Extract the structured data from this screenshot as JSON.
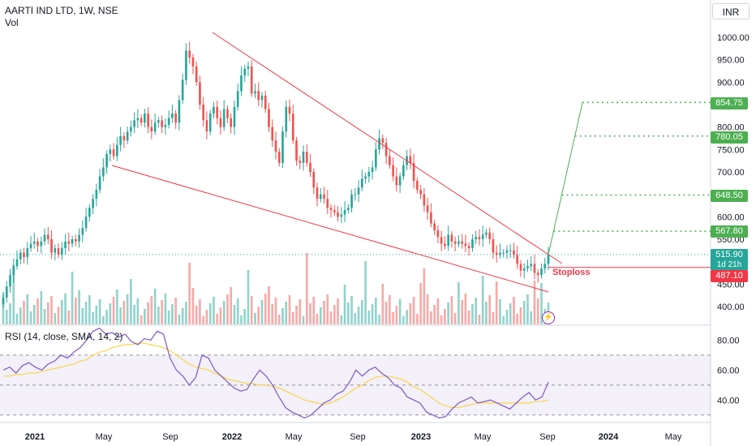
{
  "header": {
    "symbol": "AARTI IND LTD, 1W, NSE",
    "volume_label": "Vol",
    "currency": "INR",
    "rsi_label": "RSI (14, close, SMA, 14, 2)"
  },
  "price_tags": {
    "current": "515.90",
    "countdown": "1d 21h",
    "stoploss": "487.10",
    "t1": "567.80",
    "t2": "648.50",
    "t3": "780.05",
    "t4": "854.75"
  },
  "annotations": {
    "stoploss_text": "Stoploss",
    "bolt_icon": "lightning-icon"
  },
  "colors": {
    "up": "#26a69a",
    "down": "#ef5350",
    "trendline": "#f23645",
    "target": "#4caf50",
    "rsi": "#7e57c2",
    "rsi_ma": "#f7d54a"
  },
  "chart_data": [
    {
      "type": "candlestick",
      "title": "AARTI IND LTD, 1W, NSE",
      "x_ticks": [
        "2021",
        "May",
        "Sep",
        "2022",
        "May",
        "Sep",
        "2023",
        "May",
        "Sep",
        "2024",
        "May"
      ],
      "y_ticks": [
        "1000.00",
        "950.00",
        "900.00",
        "850.00",
        "800.00",
        "750.00",
        "700.00",
        "650.00",
        "600.00",
        "550.00",
        "500.00",
        "450.00",
        "400.00"
      ],
      "ylim": [
        385,
        1015
      ],
      "closes": [
        420,
        445,
        470,
        490,
        505,
        520,
        510,
        530,
        540,
        545,
        535,
        545,
        560,
        550,
        520,
        530,
        515,
        530,
        545,
        540,
        550,
        545,
        560,
        575,
        600,
        620,
        640,
        660,
        690,
        710,
        740,
        750,
        735,
        760,
        780,
        770,
        790,
        800,
        815,
        820,
        810,
        830,
        800,
        790,
        810,
        815,
        800,
        805,
        820,
        830,
        810,
        860,
        905,
        970,
        955,
        935,
        900,
        850,
        815,
        790,
        830,
        845,
        820,
        800,
        840,
        820,
        800,
        845,
        880,
        915,
        930,
        935,
        875,
        880,
        860,
        870,
        840,
        800,
        770,
        745,
        720,
        790,
        845,
        830,
        770,
        725,
        720,
        745,
        720,
        700,
        665,
        640,
        650,
        640,
        620,
        615,
        610,
        600,
        605,
        615,
        620,
        650,
        650,
        665,
        685,
        690,
        700,
        710,
        750,
        775,
        765,
        735,
        715,
        690,
        670,
        690,
        715,
        735,
        720,
        680,
        660,
        650,
        625,
        610,
        585,
        570,
        555,
        540,
        535,
        560,
        545,
        540,
        545,
        540,
        535,
        530,
        550,
        555,
        550,
        560,
        565,
        550,
        520,
        515,
        520,
        520,
        525,
        525,
        515,
        495,
        480,
        485,
        490,
        495,
        475,
        470,
        485,
        495,
        516
      ],
      "trendlines": [
        {
          "from": [
            "2022-01-01",
            1010
          ],
          "to": [
            "2023-09-15",
            505
          ]
        },
        {
          "from": [
            "2021-03-01",
            718
          ],
          "to": [
            "2023-09-01",
            475
          ]
        }
      ],
      "targets": [
        567.8,
        648.5,
        780.05,
        854.75
      ],
      "stoploss": 487.1,
      "last": 515.9
    },
    {
      "type": "line",
      "title": "RSI (14, close, SMA, 14, 2)",
      "y_ticks": [
        "80.00",
        "60.00",
        "40.00"
      ],
      "ylim": [
        25,
        90
      ],
      "bands": [
        30,
        50,
        70
      ],
      "series": [
        {
          "name": "RSI",
          "values": [
            60,
            62,
            58,
            63,
            65,
            62,
            60,
            64,
            66,
            70,
            68,
            72,
            75,
            80,
            86,
            88,
            84,
            85,
            82,
            84,
            79,
            77,
            81,
            80,
            86,
            84,
            68,
            60,
            56,
            50,
            55,
            70,
            68,
            60,
            56,
            52,
            48,
            46,
            47,
            54,
            60,
            56,
            50,
            42,
            35,
            32,
            30,
            28,
            30,
            34,
            38,
            40,
            44,
            46,
            52,
            60,
            56,
            60,
            62,
            58,
            55,
            50,
            48,
            42,
            40,
            38,
            32,
            30,
            28,
            29,
            34,
            38,
            40,
            42,
            38,
            39,
            40,
            38,
            36,
            34,
            38,
            42,
            45,
            40,
            42,
            52
          ]
        },
        {
          "name": "SMA",
          "values": [
            56,
            56,
            57,
            57,
            58,
            58,
            59,
            60,
            61,
            62,
            63,
            64,
            66,
            67,
            70,
            72,
            73,
            75,
            76,
            77,
            77,
            78,
            78,
            77,
            76,
            75,
            73,
            70,
            67,
            64,
            62,
            61,
            60,
            58,
            56,
            54,
            53,
            52,
            51,
            51,
            50,
            50,
            49,
            48,
            46,
            44,
            42,
            40,
            39,
            38,
            37,
            38,
            40,
            42,
            45,
            48,
            50,
            53,
            55,
            56,
            56,
            55,
            54,
            52,
            49,
            47,
            44,
            41,
            38,
            36,
            35,
            35,
            36,
            37,
            38,
            38,
            38,
            38,
            38,
            38,
            38,
            38,
            38,
            39,
            39,
            40
          ]
        }
      ]
    }
  ]
}
